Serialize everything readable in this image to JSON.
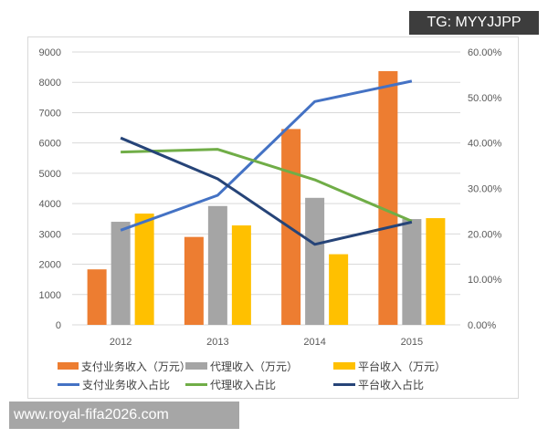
{
  "chart_data": {
    "type": "bar",
    "categories": [
      "2012",
      "2013",
      "2014",
      "2015"
    ],
    "series": [
      {
        "name": "支付业务收入（万元）",
        "kind": "bar",
        "axis": "left",
        "color": "#ED7D31",
        "values": [
          1830,
          2900,
          6460,
          8370
        ]
      },
      {
        "name": "代理收入（万元）",
        "kind": "bar",
        "axis": "left",
        "color": "#A5A5A5",
        "values": [
          3400,
          3920,
          4190,
          3490
        ]
      },
      {
        "name": "平台收入（万元）",
        "kind": "bar",
        "axis": "left",
        "color": "#FFC000",
        "values": [
          3670,
          3280,
          2330,
          3520
        ]
      },
      {
        "name": "支付业务收入占比",
        "kind": "line",
        "axis": "right",
        "color": "#4472C4",
        "values": [
          20.8,
          28.5,
          49.1,
          53.6
        ]
      },
      {
        "name": "代理收入占比",
        "kind": "line",
        "axis": "right",
        "color": "#70AD47",
        "values": [
          38.0,
          38.6,
          31.9,
          22.8
        ]
      },
      {
        "name": "平台收入占比",
        "kind": "line",
        "axis": "right",
        "color": "#264478",
        "values": [
          41.1,
          32.1,
          17.7,
          22.6
        ]
      }
    ],
    "ylim": [
      0,
      9000
    ],
    "yticks": [
      "0",
      "1000",
      "2000",
      "3000",
      "4000",
      "5000",
      "6000",
      "7000",
      "8000",
      "9000"
    ],
    "y2lim": [
      0,
      60
    ],
    "y2ticks": [
      "0.00%",
      "10.00%",
      "20.00%",
      "30.00%",
      "40.00%",
      "50.00%",
      "60.00%"
    ],
    "grid": true,
    "legend_position": "bottom"
  },
  "overlay": {
    "tg": "TG: MYYJJPP",
    "watermark": "www.royal-fifa2026.com"
  }
}
